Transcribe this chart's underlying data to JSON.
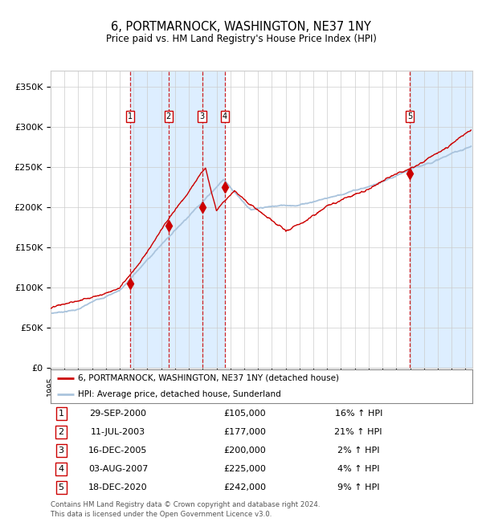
{
  "title": "6, PORTMARNOCK, WASHINGTON, NE37 1NY",
  "subtitle": "Price paid vs. HM Land Registry's House Price Index (HPI)",
  "ylabel_ticks": [
    "£0",
    "£50K",
    "£100K",
    "£150K",
    "£200K",
    "£250K",
    "£300K",
    "£350K"
  ],
  "ytick_values": [
    0,
    50000,
    100000,
    150000,
    200000,
    250000,
    300000,
    350000
  ],
  "ylim": [
    0,
    370000
  ],
  "xlim_start": 1995.0,
  "xlim_end": 2025.5,
  "sale_points": [
    {
      "label": "1",
      "date_num": 2000.75,
      "price": 105000,
      "date_str": "29-SEP-2000",
      "price_str": "£105,000",
      "hpi_str": "16% ↑ HPI"
    },
    {
      "label": "2",
      "date_num": 2003.53,
      "price": 177000,
      "date_str": "11-JUL-2003",
      "price_str": "£177,000",
      "hpi_str": "21% ↑ HPI"
    },
    {
      "label": "3",
      "date_num": 2005.96,
      "price": 200000,
      "date_str": "16-DEC-2005",
      "price_str": "£200,000",
      "hpi_str": "2% ↑ HPI"
    },
    {
      "label": "4",
      "date_num": 2007.59,
      "price": 225000,
      "date_str": "03-AUG-2007",
      "price_str": "£225,000",
      "hpi_str": "4% ↑ HPI"
    },
    {
      "label": "5",
      "date_num": 2020.96,
      "price": 242000,
      "date_str": "18-DEC-2020",
      "price_str": "£242,000",
      "hpi_str": "9% ↑ HPI"
    }
  ],
  "shaded_regions": [
    [
      2000.75,
      2003.53
    ],
    [
      2003.53,
      2005.96
    ],
    [
      2005.96,
      2007.59
    ],
    [
      2020.96,
      2025.5
    ]
  ],
  "legend_line1": "6, PORTMARNOCK, WASHINGTON, NE37 1NY (detached house)",
  "legend_line2": "HPI: Average price, detached house, Sunderland",
  "footer1": "Contains HM Land Registry data © Crown copyright and database right 2024.",
  "footer2": "This data is licensed under the Open Government Licence v3.0.",
  "hpi_color": "#aac4dd",
  "sale_color": "#cc0000",
  "bg_color": "#ffffff",
  "grid_color": "#cccccc",
  "shaded_color": "#ddeeff"
}
